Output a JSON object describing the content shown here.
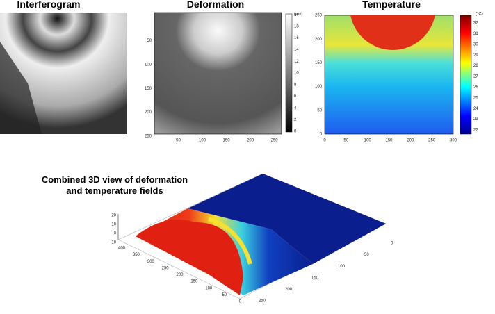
{
  "panels": [
    {
      "title": "Interferogram"
    },
    {
      "title": "Deformation",
      "xticks": [
        50,
        100,
        150,
        200,
        250
      ],
      "yticks": [
        50,
        100,
        150,
        200,
        250
      ],
      "colorbar": {
        "unit": "(μm)",
        "ticks": [
          0,
          2,
          4,
          6,
          8,
          10,
          12,
          14,
          16,
          18,
          20
        ]
      }
    },
    {
      "title": "Temperature",
      "xticks": [
        0,
        50,
        100,
        150,
        200,
        250,
        300
      ],
      "yticks": [
        0,
        50,
        100,
        150,
        200,
        250
      ],
      "colorbar": {
        "unit": "(°C)",
        "ticks": [
          22,
          23,
          24,
          25,
          26,
          27,
          28,
          29,
          30,
          31,
          32
        ]
      }
    }
  ],
  "view3d": {
    "title_lines": [
      "Combined 3D view of deformation",
      "and temperature fields"
    ],
    "zticks": [
      20,
      10,
      0,
      -10
    ],
    "yticks": [
      400,
      350,
      300,
      250,
      200,
      150,
      100,
      50,
      0
    ],
    "xticks": [
      250,
      200,
      150,
      100,
      50,
      0
    ]
  }
}
